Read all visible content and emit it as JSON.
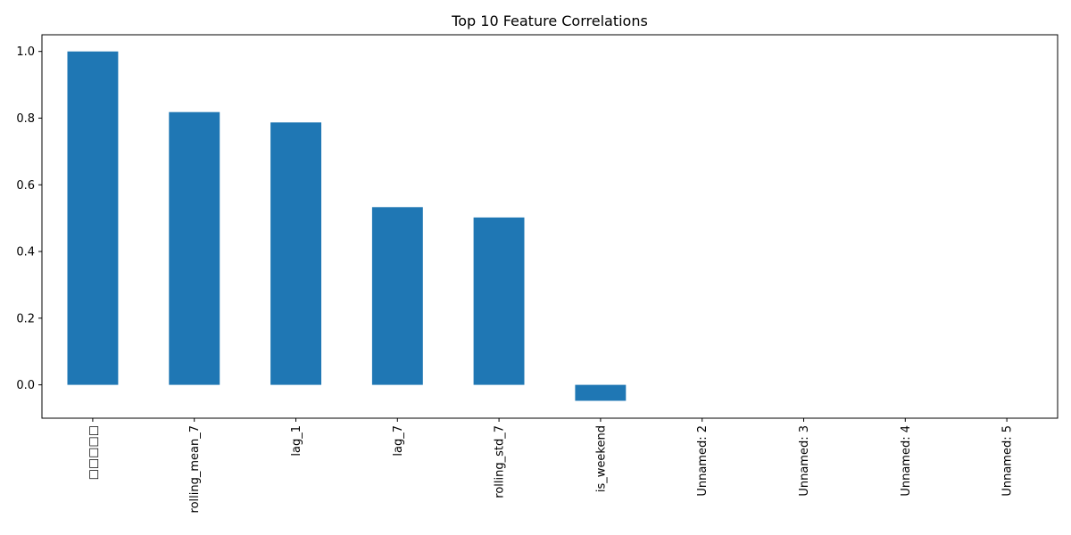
{
  "chart_data": {
    "type": "bar",
    "title": "Top 10 Feature Correlations",
    "xlabel": "",
    "ylabel": "",
    "categories": [
      "□□□□□",
      "rolling_mean_7",
      "lag_1",
      "lag_7",
      "rolling_std_7",
      "is_weekend",
      "Unnamed: 2",
      "Unnamed: 3",
      "Unnamed: 4",
      "Unnamed: 5"
    ],
    "values": [
      1.0,
      0.818,
      0.787,
      0.533,
      0.502,
      -0.048,
      0,
      0,
      0,
      0
    ],
    "ylim": [
      -0.1,
      1.05
    ],
    "yticks": [
      "0.0",
      "0.2",
      "0.4",
      "0.6",
      "0.8",
      "1.0"
    ],
    "grid": false,
    "bar_color": "#1f77b4"
  }
}
